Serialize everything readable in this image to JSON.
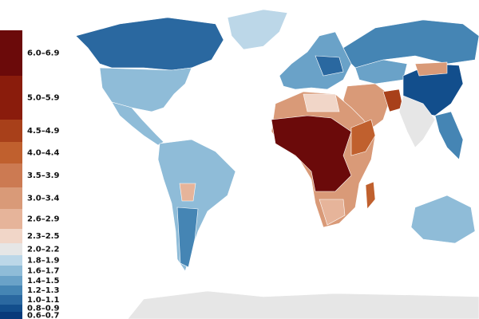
{
  "legend": {
    "items": [
      {
        "label": "6.0–6.9",
        "color": "#6b0a0a"
      },
      {
        "label": "5.0–5.9",
        "color": "#8a1c0c"
      },
      {
        "label": "4.5–4.9",
        "color": "#a8401a"
      },
      {
        "label": "4.0–4.4",
        "color": "#c0602e"
      },
      {
        "label": "3.5–3.9",
        "color": "#cc7a52"
      },
      {
        "label": "3.0–3.4",
        "color": "#d99a78"
      },
      {
        "label": "2.6–2.9",
        "color": "#e6b49a"
      },
      {
        "label": "2.3–2.5",
        "color": "#f1d6c8"
      },
      {
        "label": "2.0–2.2",
        "color": "#e6e6e6"
      },
      {
        "label": "1.8–1.9",
        "color": "#bcd7e8"
      },
      {
        "label": "1.6–1.7",
        "color": "#8fbcd8"
      },
      {
        "label": "1.4–1.5",
        "color": "#6aa2c8"
      },
      {
        "label": "1.2–1.3",
        "color": "#4585b4"
      },
      {
        "label": "1.0–1.1",
        "color": "#2a68a0"
      },
      {
        "label": "0.8–0.9",
        "color": "#124e8c"
      },
      {
        "label": "0.6–0.7",
        "color": "#083a7a"
      }
    ]
  }
}
